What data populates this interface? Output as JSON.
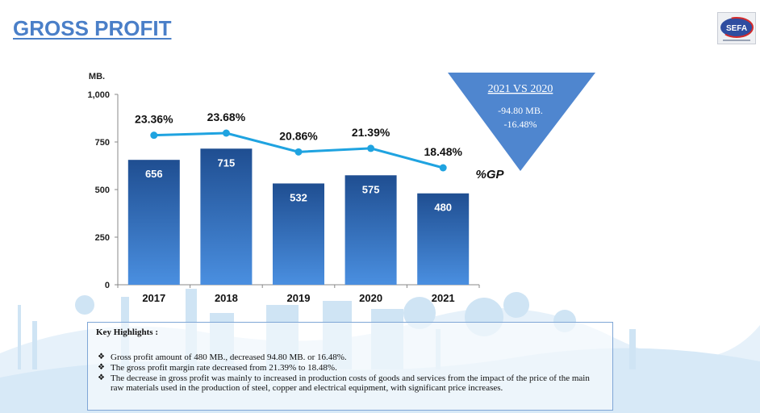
{
  "header": {
    "title": "GROSS PROFIT"
  },
  "logo": {
    "name": "sefa-logo-icon",
    "text": "SEFA"
  },
  "colors": {
    "title": "#4a7fc8",
    "bar_top": "#1f4e91",
    "bar_bottom": "#4a8fe0",
    "line": "#1fa3e0",
    "triangle": "#4f86cf"
  },
  "comparison": {
    "title": "2021 VS 2020",
    "line1": "-94.80 MB.",
    "line2": "-16.48%"
  },
  "chart_data": {
    "type": "bar",
    "categories": [
      "2017",
      "2018",
      "2019",
      "2020",
      "2021"
    ],
    "series": [
      {
        "values": [
          656,
          715,
          532,
          575,
          480
        ]
      },
      {
        "name": "%GP",
        "values": [
          23.36,
          23.68,
          20.86,
          21.39,
          18.48
        ],
        "labels": [
          "23.36%",
          "23.68%",
          "20.86%",
          "21.39%",
          "18.48%"
        ]
      }
    ],
    "bar_labels": [
      "656",
      "715",
      "532",
      "575",
      "480"
    ],
    "ylabel": "MB.",
    "ylim": [
      0,
      1000
    ],
    "yticks": [
      0,
      250,
      500,
      750,
      1000
    ],
    "ytick_labels": [
      "0",
      "250",
      "500",
      "750",
      "1,000"
    ],
    "grid": false
  },
  "highlights": {
    "title": "Key Highlights :",
    "bullet_glyph": "❖",
    "items": [
      "Gross profit  amount of  480 MB., decreased 94.80 MB. or 16.48%.",
      "The gross profit margin rate decreased from 21.39% to 18.48%.",
      "The decrease in gross profit was mainly to increased in production costs of goods and services from the impact of the price of the main raw materials used in the production of steel, copper and electrical equipment, with significant price increases."
    ]
  }
}
